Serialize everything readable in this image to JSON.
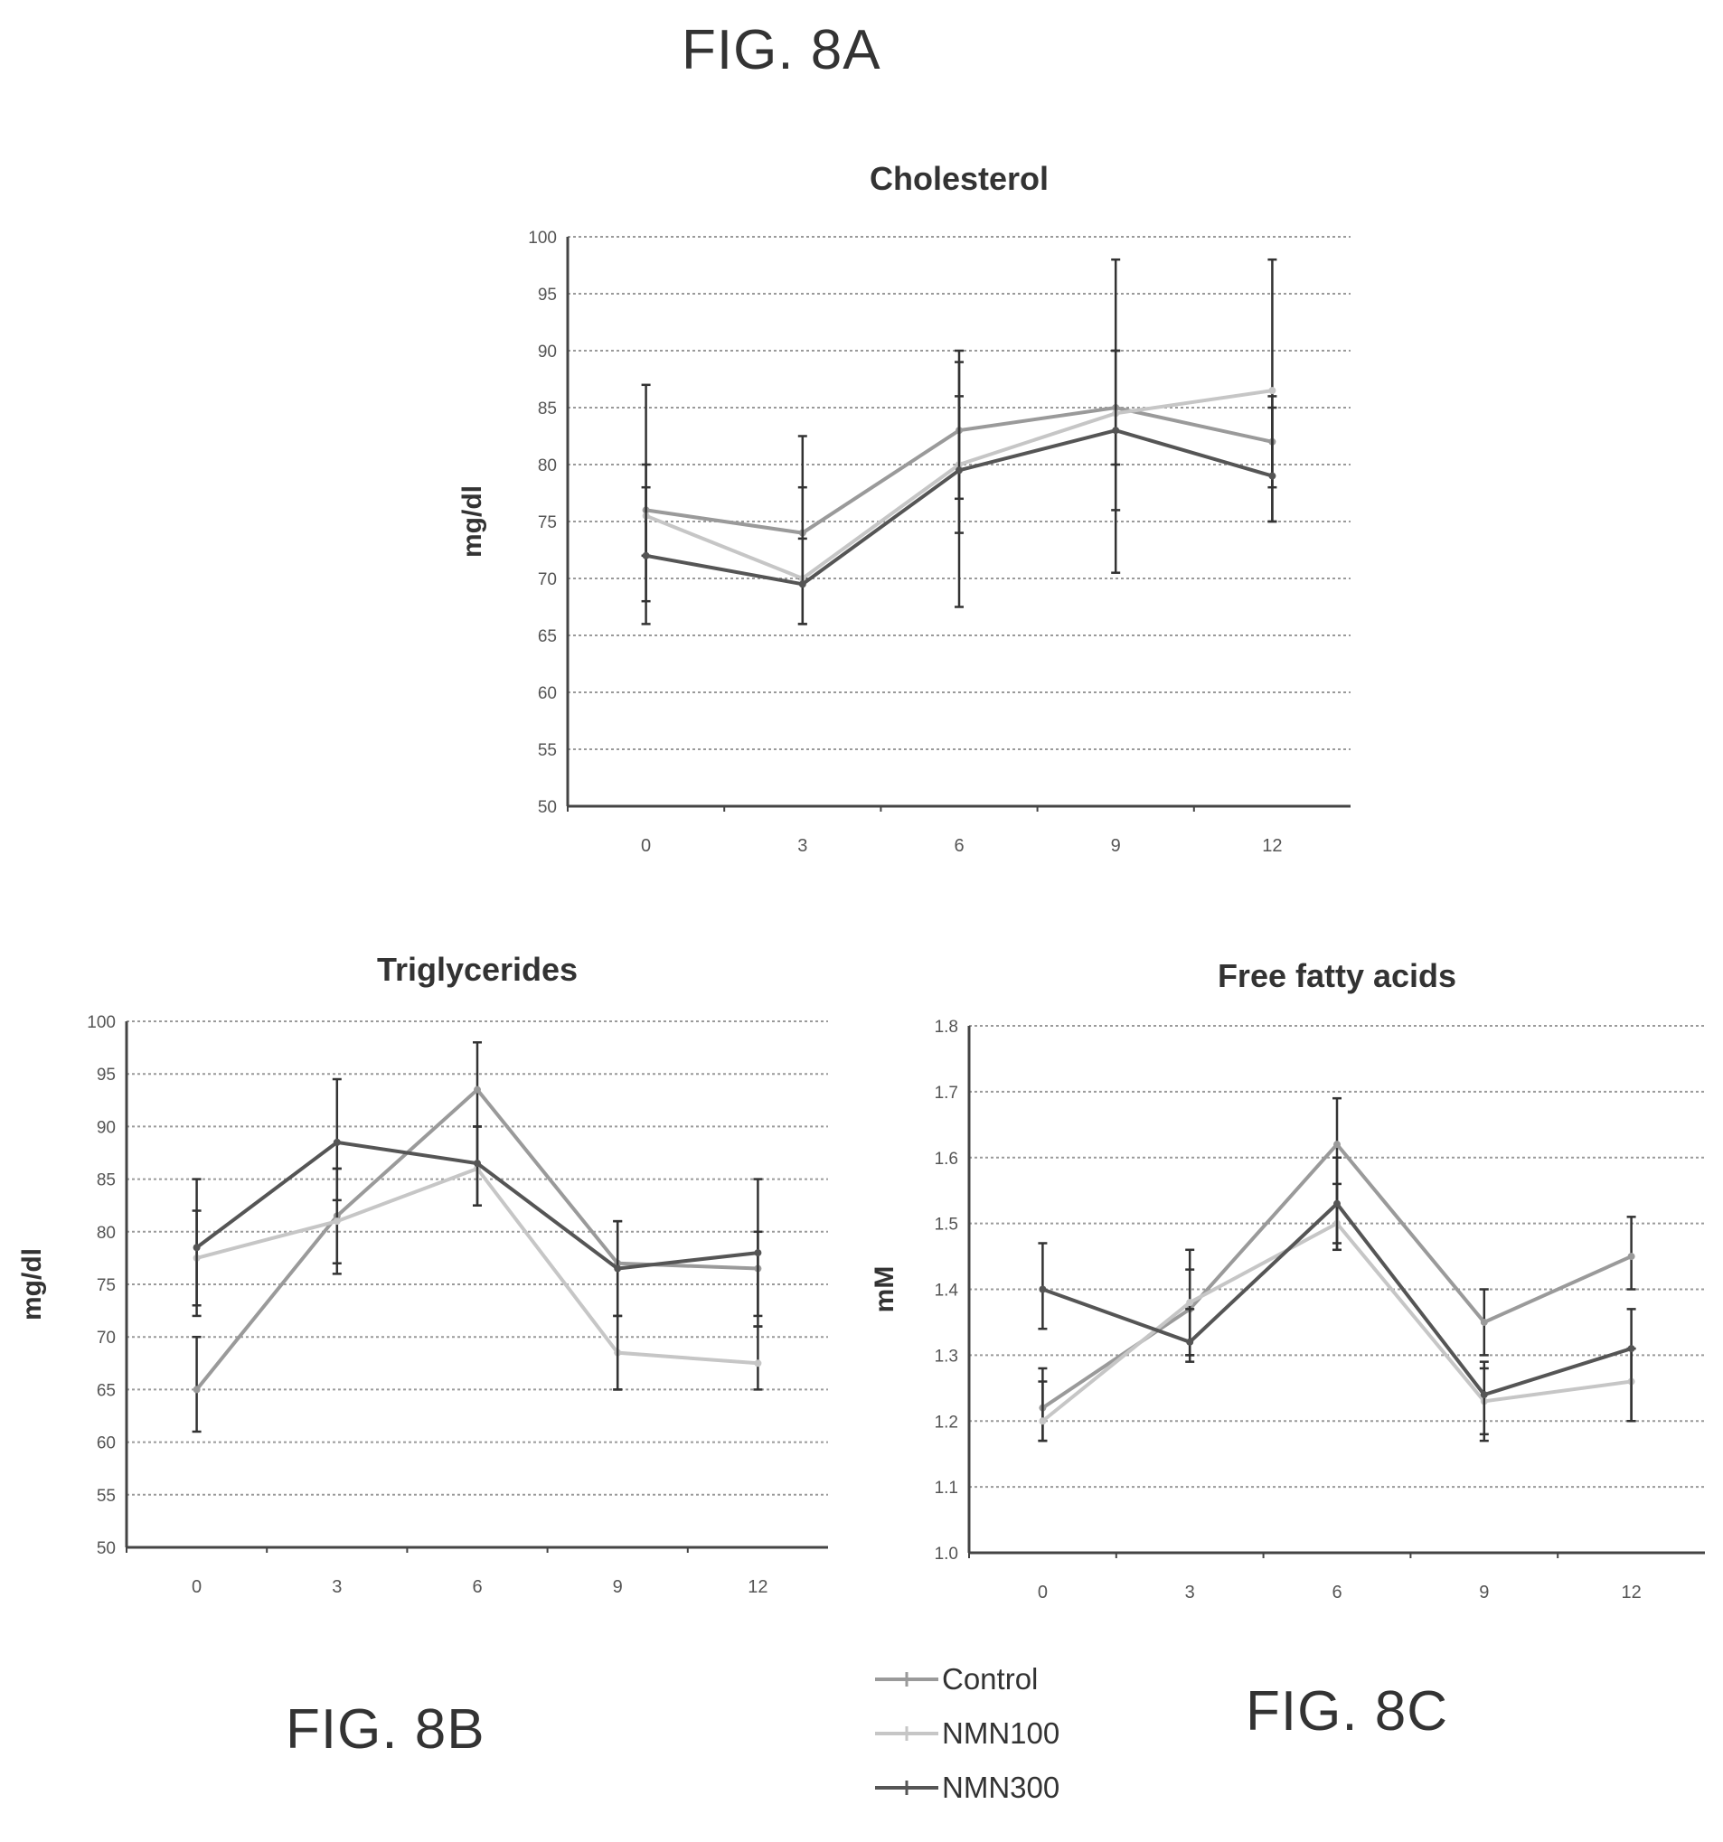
{
  "figures": {
    "a": "FIG. 8A",
    "b": "FIG. 8B",
    "c": "FIG. 8C"
  },
  "legend": [
    {
      "label": "Control",
      "color": "#9a9a9a"
    },
    {
      "label": "NMN100",
      "color": "#c6c6c6"
    },
    {
      "label": "NMN300",
      "color": "#555555"
    }
  ],
  "chart_data": [
    {
      "type": "line",
      "title": "Cholesterol",
      "ylabel": "mg/dl",
      "xlabel": "",
      "ylim": [
        50,
        100
      ],
      "yticks": [
        50,
        55,
        60,
        65,
        70,
        75,
        80,
        85,
        90,
        95,
        100
      ],
      "ytick_labels": [
        "50",
        "55",
        "60",
        "65",
        "70",
        "75",
        "80",
        "85",
        "90",
        "95",
        "100"
      ],
      "categories": [
        "0",
        "3",
        "6",
        "9",
        "12"
      ],
      "grid": true,
      "series": [
        {
          "name": "Control",
          "values": [
            76,
            74,
            83,
            85,
            82
          ],
          "error_low": [
            72,
            70,
            77,
            80,
            78
          ],
          "error_high": [
            80,
            78,
            89,
            90,
            86
          ]
        },
        {
          "name": "NMN100",
          "values": [
            75.5,
            70,
            80,
            84.5,
            86.5
          ],
          "error_low": [
            66,
            66,
            67.5,
            70.5,
            75
          ],
          "error_high": [
            87,
            82.5,
            90,
            98,
            98
          ]
        },
        {
          "name": "NMN300",
          "values": [
            72,
            69.5,
            79.5,
            83,
            79
          ],
          "error_low": [
            68,
            66,
            74,
            76,
            75
          ],
          "error_high": [
            78,
            73.5,
            86,
            90,
            85
          ]
        }
      ]
    },
    {
      "type": "line",
      "title": "Triglycerides",
      "ylabel": "mg/dl",
      "xlabel": "",
      "ylim": [
        50,
        100
      ],
      "yticks": [
        50,
        55,
        60,
        65,
        70,
        75,
        80,
        85,
        90,
        95,
        100
      ],
      "ytick_labels": [
        "50",
        "55",
        "60",
        "65",
        "70",
        "75",
        "80",
        "85",
        "90",
        "95",
        "100"
      ],
      "categories": [
        "0",
        "3",
        "6",
        "9",
        "12"
      ],
      "grid": true,
      "series": [
        {
          "name": "Control",
          "values": [
            65,
            81.5,
            93.5,
            77,
            76.5
          ],
          "error_low": [
            61,
            77,
            90,
            72,
            71
          ],
          "error_high": [
            70,
            86,
            98,
            81,
            80
          ]
        },
        {
          "name": "NMN100",
          "values": [
            77.5,
            81,
            86,
            68.5,
            67.5
          ],
          "error_low": [
            73,
            76,
            82.5,
            65,
            65
          ],
          "error_high": [
            82,
            86,
            90,
            72,
            71
          ]
        },
        {
          "name": "NMN300",
          "values": [
            78.5,
            88.5,
            86.5,
            76.5,
            78
          ],
          "error_low": [
            72,
            83,
            82.5,
            65,
            72
          ],
          "error_high": [
            85,
            94.5,
            90,
            81,
            85
          ]
        }
      ]
    },
    {
      "type": "line",
      "title": "Free fatty acids",
      "ylabel": "mM",
      "xlabel": "",
      "ylim": [
        1.0,
        1.8
      ],
      "yticks": [
        1.0,
        1.1,
        1.2,
        1.3,
        1.4,
        1.5,
        1.6,
        1.7,
        1.8
      ],
      "ytick_labels": [
        "1.0",
        "1.1",
        "1.2",
        "1.3",
        "1.4",
        "1.5",
        "1.6",
        "1.7",
        "1.8"
      ],
      "categories": [
        "0",
        "3",
        "6",
        "9",
        "12"
      ],
      "grid": true,
      "series": [
        {
          "name": "Control",
          "values": [
            1.22,
            1.37,
            1.62,
            1.35,
            1.45
          ],
          "error_low": [
            1.17,
            1.3,
            1.46,
            1.3,
            1.4
          ],
          "error_high": [
            1.28,
            1.46,
            1.69,
            1.4,
            1.51
          ]
        },
        {
          "name": "NMN100",
          "values": [
            1.2,
            1.38,
            1.5,
            1.23,
            1.26
          ],
          "error_low": [
            1.17,
            1.3,
            1.46,
            1.18,
            1.2
          ],
          "error_high": [
            1.26,
            1.43,
            1.56,
            1.28,
            1.31
          ]
        },
        {
          "name": "NMN300",
          "values": [
            1.4,
            1.32,
            1.53,
            1.24,
            1.31
          ],
          "error_low": [
            1.34,
            1.29,
            1.47,
            1.17,
            1.2
          ],
          "error_high": [
            1.47,
            1.37,
            1.6,
            1.29,
            1.37
          ]
        }
      ]
    }
  ]
}
